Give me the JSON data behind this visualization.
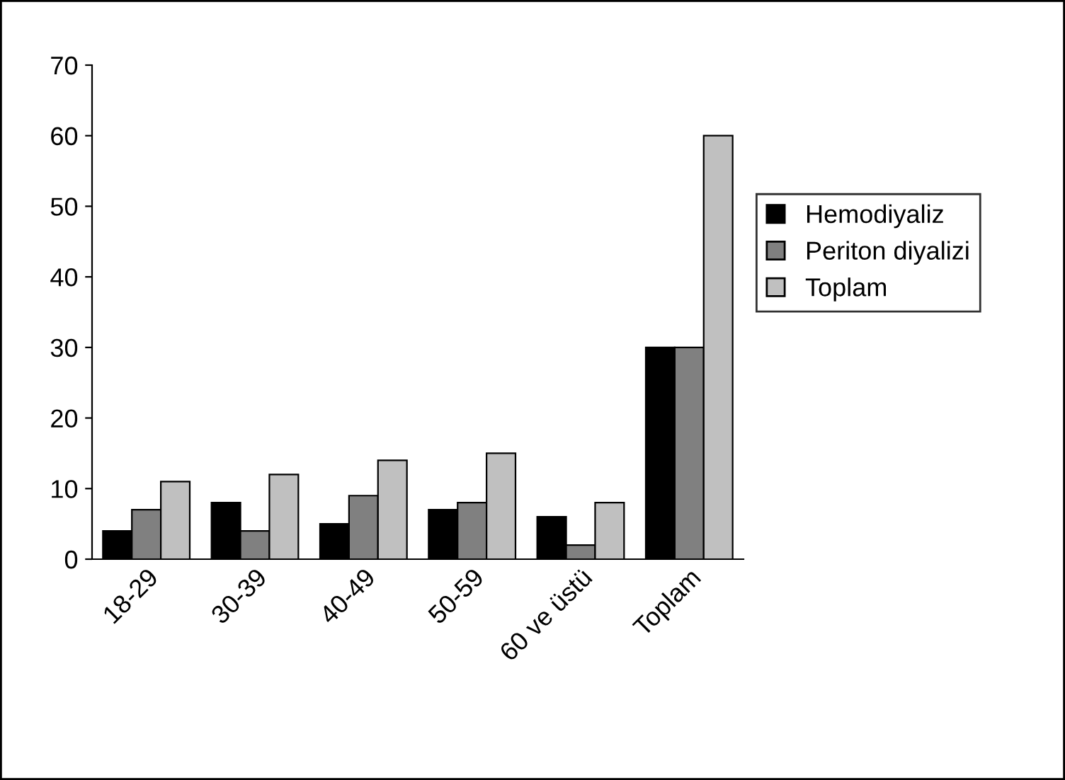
{
  "chart_data": {
    "type": "bar",
    "categories": [
      "18-29",
      "30-39",
      "40-49",
      "50-59",
      "60 ve üstü",
      "Toplam"
    ],
    "series": [
      {
        "name": "Hemodiyaliz",
        "color": "#000000",
        "values": [
          4,
          8,
          5,
          7,
          6,
          30
        ]
      },
      {
        "name": "Periton diyalizi",
        "color": "#808080",
        "values": [
          7,
          4,
          9,
          8,
          2,
          30
        ]
      },
      {
        "name": "Toplam",
        "color": "#c0c0c0",
        "values": [
          11,
          12,
          14,
          15,
          8,
          60
        ]
      }
    ],
    "ylim": [
      0,
      70
    ],
    "yticks": [
      0,
      10,
      20,
      30,
      40,
      50,
      60,
      70
    ],
    "grid": false,
    "legend": "right"
  }
}
